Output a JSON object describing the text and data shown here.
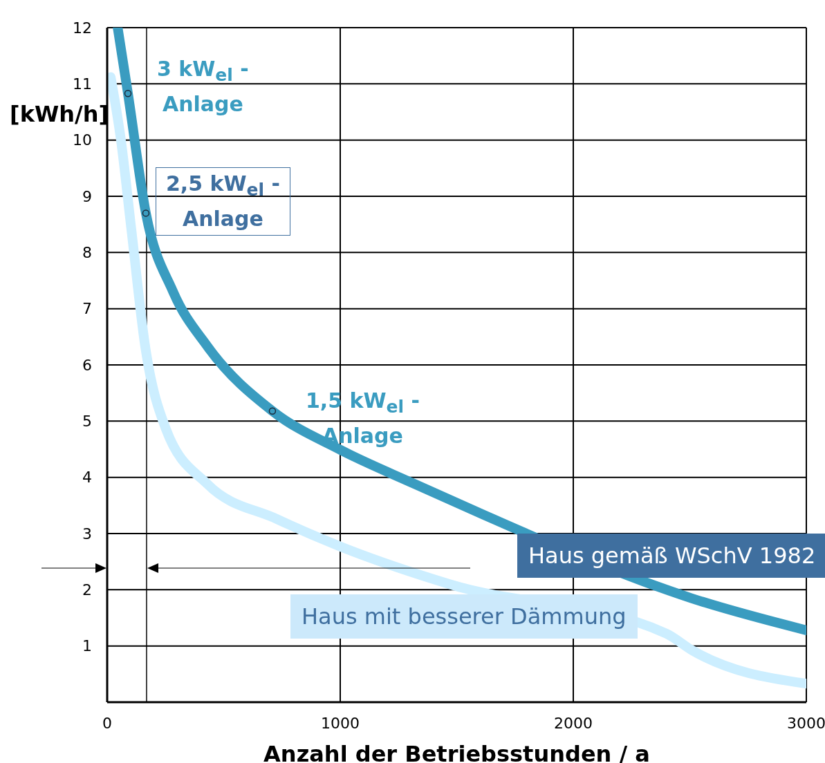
{
  "chart_data": {
    "type": "line",
    "xlabel": "Anzahl der Betriebsstunden / a",
    "ylabel": "[kWh/h]",
    "xlim": [
      0,
      3000
    ],
    "xticks": [
      0,
      1000,
      2000,
      3000
    ],
    "ylim": [
      0,
      12
    ],
    "yticks": [
      1,
      2,
      3,
      4,
      5,
      6,
      7,
      8,
      9,
      10,
      11,
      12
    ],
    "grid": true,
    "marker": "none",
    "line_style": "solid",
    "series": [
      {
        "name": "Haus gemäß WSchV 1982",
        "color": "#3a9cc0",
        "x": [
          45,
          89,
          166,
          282,
          430,
          709,
          1000,
          1320,
          1617,
          2300,
          2507,
          3000
        ],
        "values": [
          12,
          10.83,
          8.7,
          7.31,
          6.33,
          5.18,
          4.49,
          3.88,
          3.33,
          2.15,
          1.85,
          1.28
        ]
      },
      {
        "name": "Haus mit besserer Dämmung",
        "color": "#cceeff",
        "x": [
          15,
          59,
          104,
          163,
          252,
          430,
          727,
          1000,
          1469,
          2400,
          2507,
          3000
        ],
        "values": [
          11.12,
          10,
          8.4,
          6.33,
          4.86,
          3.88,
          3.26,
          2.77,
          2.1,
          1.22,
          0.93,
          0.33
        ]
      },
      {
        "type": "scatter",
        "color": "#3a9cc0",
        "marker": "circle",
        "x": [
          89,
          166,
          709
        ],
        "values": [
          10.83,
          8.7,
          5.18
        ]
      }
    ],
    "ref_lines": [
      {
        "axis": "x",
        "value": 169,
        "color": "#000000"
      }
    ],
    "annotations": [
      {
        "text": "3 kW$_{el}$ -\nAnlage",
        "x": 89,
        "y": 10.83
      },
      {
        "text": "2,5 kW$_{el}$ -\nAnlage",
        "x": 166,
        "y": 8.7
      },
      {
        "text": "1,5 kW$_{el}$ -\nAnlage",
        "x": 709,
        "y": 5.18
      }
    ]
  }
}
